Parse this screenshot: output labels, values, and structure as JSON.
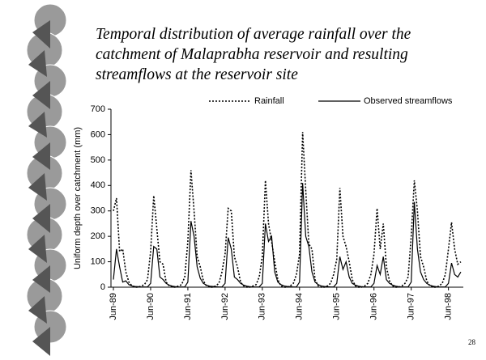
{
  "slide": {
    "title": "Temporal distribution of average rainfall over the catchment of Malaprabha reservoir and resulting streamflows at the reservoir site",
    "page_number": "28"
  },
  "chart_data": {
    "type": "line",
    "y_label": "Uniform depth over catchment (mm)",
    "categories": [
      "Jun-89",
      null,
      null,
      null,
      null,
      null,
      null,
      null,
      null,
      null,
      null,
      null,
      "Jun-90",
      null,
      null,
      null,
      null,
      null,
      null,
      null,
      null,
      null,
      null,
      null,
      "Jun-91",
      null,
      null,
      null,
      null,
      null,
      null,
      null,
      null,
      null,
      null,
      null,
      "Jun-92",
      null,
      null,
      null,
      null,
      null,
      null,
      null,
      null,
      null,
      null,
      null,
      "Jun-93",
      null,
      null,
      null,
      null,
      null,
      null,
      null,
      null,
      null,
      null,
      null,
      "Jun-94",
      null,
      null,
      null,
      null,
      null,
      null,
      null,
      null,
      null,
      null,
      null,
      "Jun-95",
      null,
      null,
      null,
      null,
      null,
      null,
      null,
      null,
      null,
      null,
      null,
      "Jun-96",
      null,
      null,
      null,
      null,
      null,
      null,
      null,
      null,
      null,
      null,
      null,
      "Jun-97",
      null,
      null,
      null,
      null,
      null,
      null,
      null,
      null,
      null,
      null,
      null,
      "Jun-98",
      null,
      null,
      null,
      null
    ],
    "series": [
      {
        "name": "Rainfall",
        "color": "#000000",
        "dash": "dotted",
        "values": [
          300,
          350,
          140,
          150,
          60,
          20,
          5,
          0,
          0,
          5,
          10,
          30,
          140,
          360,
          230,
          100,
          90,
          20,
          5,
          0,
          0,
          5,
          10,
          40,
          180,
          460,
          300,
          120,
          80,
          25,
          5,
          0,
          0,
          5,
          15,
          60,
          130,
          310,
          300,
          120,
          80,
          20,
          5,
          0,
          0,
          5,
          10,
          40,
          120,
          420,
          250,
          180,
          100,
          30,
          5,
          0,
          0,
          5,
          15,
          50,
          130,
          610,
          380,
          170,
          150,
          30,
          5,
          0,
          0,
          5,
          15,
          50,
          110,
          390,
          200,
          160,
          100,
          30,
          5,
          0,
          0,
          5,
          15,
          50,
          130,
          310,
          150,
          250,
          80,
          25,
          5,
          0,
          0,
          5,
          15,
          40,
          200,
          420,
          300,
          120,
          80,
          25,
          5,
          0,
          0,
          5,
          15,
          50,
          150,
          255,
          150,
          90,
          100
        ]
      },
      {
        "name": "Observed streamflows",
        "color": "#000000",
        "dash": "solid",
        "values": [
          30,
          150,
          80,
          20,
          25,
          10,
          5,
          3,
          2,
          1,
          1,
          1,
          15,
          160,
          150,
          40,
          30,
          15,
          8,
          4,
          2,
          1,
          1,
          1,
          20,
          260,
          200,
          80,
          35,
          15,
          8,
          4,
          3,
          2,
          1,
          1,
          15,
          195,
          150,
          40,
          30,
          15,
          8,
          4,
          2,
          1,
          1,
          1,
          15,
          250,
          180,
          200,
          60,
          20,
          10,
          5,
          3,
          2,
          1,
          1,
          20,
          410,
          200,
          160,
          60,
          20,
          10,
          5,
          3,
          2,
          1,
          1,
          15,
          120,
          70,
          100,
          40,
          15,
          8,
          4,
          2,
          1,
          1,
          1,
          15,
          85,
          50,
          120,
          30,
          15,
          8,
          4,
          2,
          1,
          1,
          1,
          20,
          335,
          150,
          60,
          30,
          15,
          8,
          4,
          2,
          1,
          1,
          1,
          15,
          95,
          50,
          40,
          60
        ]
      }
    ],
    "ylim": [
      0,
      700
    ],
    "yticks": [
      0,
      100,
      200,
      300,
      400,
      500,
      600,
      700
    ],
    "grid": false,
    "legend": "top"
  }
}
